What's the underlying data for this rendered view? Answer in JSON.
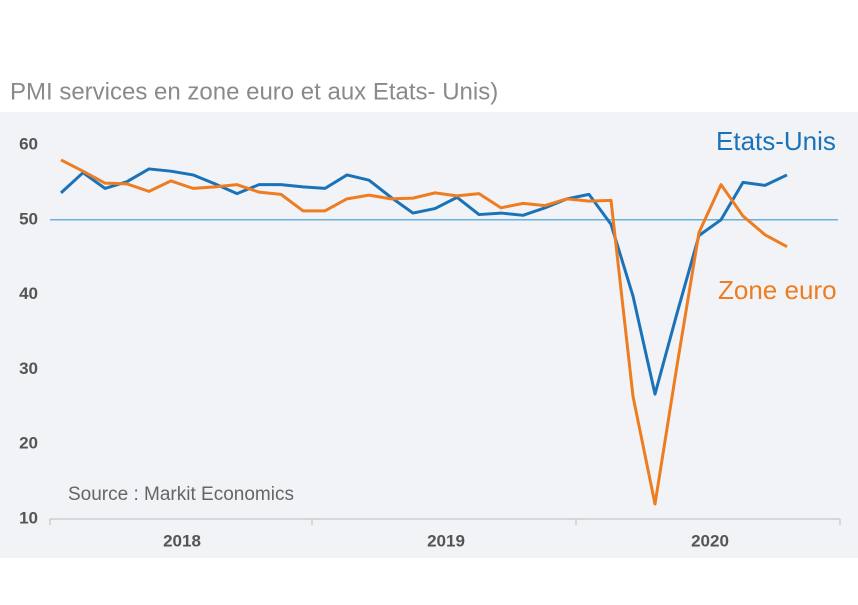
{
  "chart_data": {
    "type": "line",
    "title": "PMI services en zone euro et aux Etats- Unis)",
    "note": "Source : Markit Economics",
    "categories": [
      null,
      null,
      null,
      null,
      null,
      null,
      null,
      null,
      null,
      null,
      null,
      null,
      null,
      null,
      null,
      null,
      null,
      null,
      null,
      null,
      null,
      null,
      null,
      null,
      null,
      null,
      null,
      null,
      null,
      null,
      null,
      null,
      null,
      null
    ],
    "year_labels": [
      "2018",
      "2019",
      "2020"
    ],
    "series": [
      {
        "name": "Etats-Unis",
        "color": "#1a73b8",
        "values": [
          53.6,
          56.3,
          54.2,
          55.1,
          56.8,
          56.5,
          56.0,
          54.8,
          53.5,
          54.7,
          54.7,
          54.4,
          54.2,
          56.0,
          55.3,
          53.0,
          50.9,
          51.5,
          53.0,
          50.7,
          50.9,
          50.6,
          51.6,
          52.8,
          53.4,
          49.4,
          39.8,
          26.7,
          37.5,
          47.9,
          50.0,
          55.0,
          54.6,
          56.0
        ]
      },
      {
        "name": "Zone euro",
        "color": "#ee7d22",
        "values": [
          58.0,
          56.5,
          54.9,
          54.8,
          53.8,
          55.2,
          54.2,
          54.4,
          54.7,
          53.7,
          53.4,
          51.2,
          51.2,
          52.8,
          53.3,
          52.8,
          52.9,
          53.6,
          53.2,
          53.5,
          51.6,
          52.2,
          51.9,
          52.8,
          52.5,
          52.6,
          26.4,
          12.0,
          30.5,
          48.3,
          54.7,
          50.5,
          48.0,
          46.4
        ]
      }
    ],
    "reference_line": 50,
    "ylim": [
      10,
      60
    ],
    "yticks": [
      10,
      20,
      30,
      40,
      50,
      60
    ]
  }
}
